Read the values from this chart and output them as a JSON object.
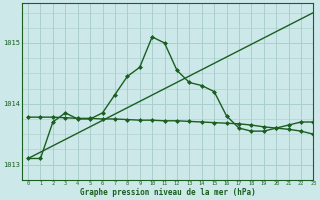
{
  "xlabel": "Graphe pression niveau de la mer (hPa)",
  "bg_color": "#cce8e8",
  "grid_color": "#aacece",
  "line_color": "#1a5e20",
  "xlim": [
    -0.5,
    23
  ],
  "ylim": [
    1012.75,
    1015.65
  ],
  "yticks": [
    1013,
    1014,
    1015
  ],
  "xticks": [
    0,
    1,
    2,
    3,
    4,
    5,
    6,
    7,
    8,
    9,
    10,
    11,
    12,
    13,
    14,
    15,
    16,
    17,
    18,
    19,
    20,
    21,
    22,
    23
  ],
  "series": [
    {
      "x": [
        0,
        1,
        2,
        3,
        4,
        5,
        6,
        7,
        8,
        9,
        10,
        11,
        12,
        13,
        14,
        15,
        16,
        17,
        18,
        19,
        20,
        21,
        22,
        23
      ],
      "y": [
        1013.1,
        1013.1,
        1013.7,
        1013.85,
        1013.75,
        1013.75,
        1013.85,
        1014.15,
        1014.45,
        1014.6,
        1015.1,
        1015.0,
        1014.55,
        1014.35,
        1014.3,
        1014.2,
        1013.8,
        1013.6,
        1013.55,
        1013.55,
        1013.6,
        1013.65,
        1013.7,
        1013.7
      ],
      "marker": "D",
      "markersize": 2.0,
      "linewidth": 1.0
    },
    {
      "x": [
        0,
        1,
        2,
        3,
        4,
        5,
        6,
        7,
        8,
        9,
        10,
        11,
        12,
        13,
        14,
        15,
        16,
        17,
        18,
        19,
        20,
        21,
        22,
        23
      ],
      "y": [
        1013.78,
        1013.78,
        1013.78,
        1013.77,
        1013.76,
        1013.76,
        1013.75,
        1013.75,
        1013.74,
        1013.73,
        1013.73,
        1013.72,
        1013.72,
        1013.71,
        1013.7,
        1013.69,
        1013.68,
        1013.67,
        1013.65,
        1013.62,
        1013.6,
        1013.58,
        1013.55,
        1013.5
      ],
      "marker": "D",
      "markersize": 2.0,
      "linewidth": 1.0
    },
    {
      "x": [
        0,
        23
      ],
      "y": [
        1013.1,
        1015.5
      ],
      "marker": null,
      "markersize": 0,
      "linewidth": 1.0
    }
  ]
}
